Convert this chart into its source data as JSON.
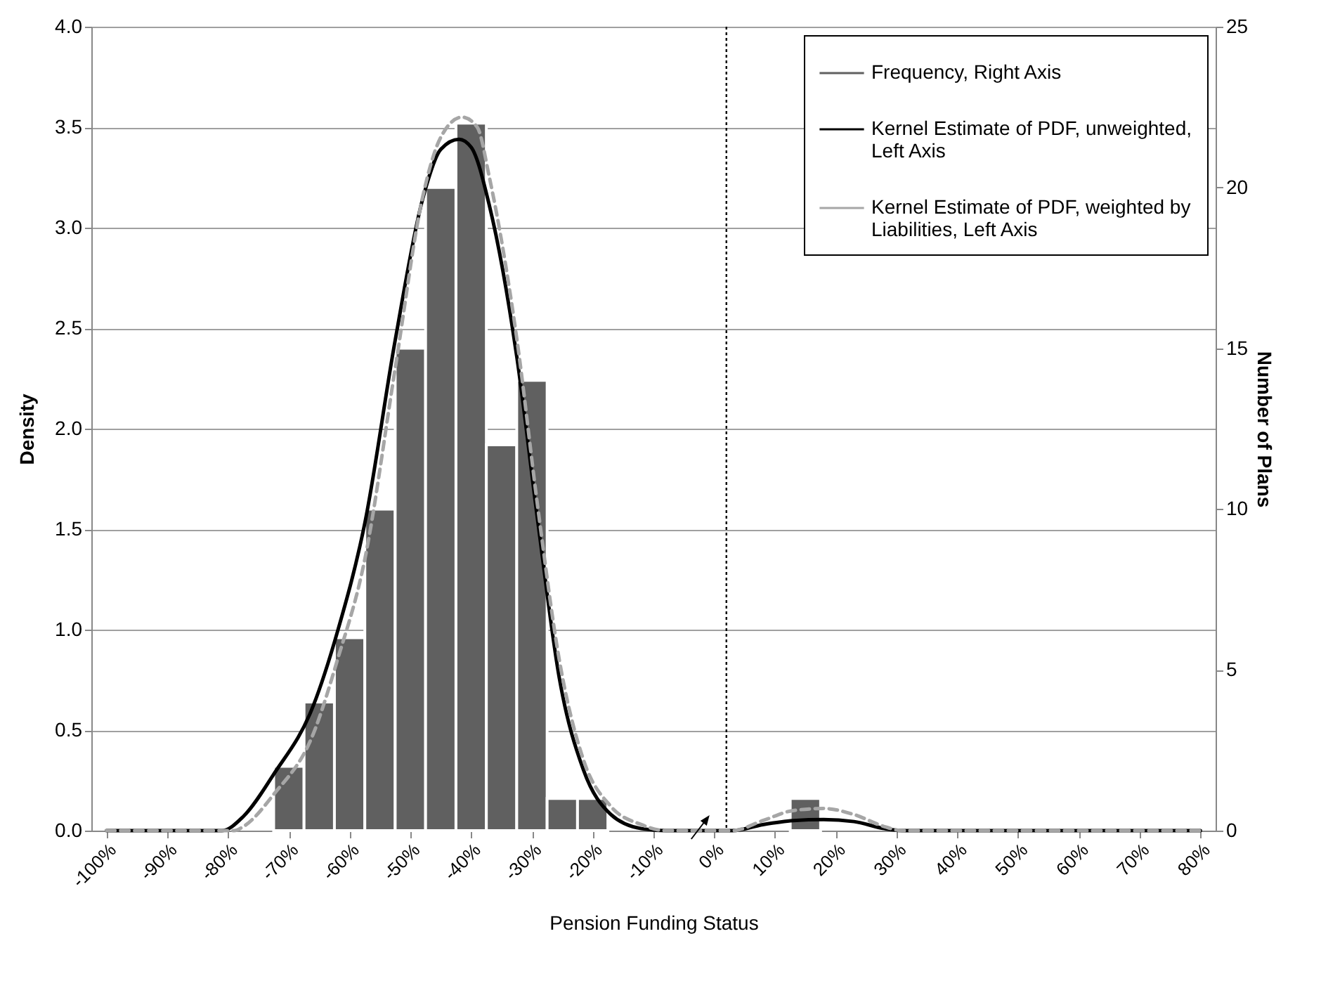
{
  "chart_data": {
    "type": "bar",
    "xlabel": "Pension Funding Status",
    "ylabel": "Density",
    "y2label": "Number of Plans",
    "series": [
      {
        "name": "Frequency, Right Axis",
        "color": "#606060",
        "axis": "y2",
        "x": [
          -70,
          -65,
          -60,
          -55,
          -50,
          -45,
          -40,
          -35,
          -30,
          -25,
          -20,
          15
        ],
        "values": [
          2,
          4,
          6,
          10,
          15,
          20,
          22,
          12,
          14,
          1,
          1,
          1
        ]
      },
      {
        "type": "line",
        "name": "Kernel Estimate of PDF, unweighted, Left Axis",
        "color": "#000000",
        "line_style": "solid",
        "x": [
          -100,
          -81,
          -77.5,
          -72.5,
          -66,
          -62,
          -57.5,
          -52.5,
          -48,
          -45,
          -42,
          -40,
          -37,
          -32.5,
          -29,
          -25.5,
          -21.5,
          -17,
          -12,
          -8,
          3,
          8,
          13,
          18,
          23,
          28,
          31,
          80
        ],
        "values": [
          0,
          0,
          0.07,
          0.28,
          0.62,
          0.99,
          1.53,
          2.44,
          3.14,
          3.39,
          3.44,
          3.4,
          3.11,
          2.36,
          1.53,
          0.76,
          0.3,
          0.08,
          0.01,
          0,
          0,
          0.03,
          0.05,
          0.055,
          0.045,
          0.01,
          0,
          0
        ]
      },
      {
        "type": "line",
        "name": "Kernel Estimate of PDF, weighted by Liabilities, Left Axis",
        "color": "#a6a6a6",
        "line_style": "dashed",
        "x": [
          -100,
          -79,
          -77.5,
          -72.5,
          -66,
          -62,
          -57.5,
          -52.5,
          -48,
          -45,
          -41.5,
          -39,
          -37,
          -32.5,
          -29,
          -25.5,
          -21.5,
          -17,
          -12,
          -8,
          3,
          8,
          13,
          18,
          23,
          28,
          31,
          80
        ],
        "values": [
          0,
          0,
          0.02,
          0.18,
          0.48,
          0.85,
          1.35,
          2.3,
          3.15,
          3.45,
          3.55,
          3.5,
          3.25,
          2.45,
          1.6,
          0.85,
          0.35,
          0.12,
          0.03,
          0,
          0,
          0.05,
          0.1,
          0.11,
          0.08,
          0.02,
          0,
          0
        ]
      }
    ],
    "xlim": [
      -102.5,
      82.5
    ],
    "xticks": [
      {
        "value": -100,
        "label": "-100%"
      },
      {
        "value": -90,
        "label": "-90%"
      },
      {
        "value": -80,
        "label": "-80%"
      },
      {
        "value": -70,
        "label": "-70%"
      },
      {
        "value": -60,
        "label": "-60%"
      },
      {
        "value": -50,
        "label": "-50%"
      },
      {
        "value": -40,
        "label": "-40%"
      },
      {
        "value": -30,
        "label": "-30%"
      },
      {
        "value": -20,
        "label": "-20%"
      },
      {
        "value": -10,
        "label": "-10%"
      },
      {
        "value": 0,
        "label": "0%"
      },
      {
        "value": 10,
        "label": "10%"
      },
      {
        "value": 20,
        "label": "20%"
      },
      {
        "value": 30,
        "label": "30%"
      },
      {
        "value": 40,
        "label": "40%"
      },
      {
        "value": 50,
        "label": "50%"
      },
      {
        "value": 60,
        "label": "60%"
      },
      {
        "value": 70,
        "label": "70%"
      },
      {
        "value": 80,
        "label": "80%"
      }
    ],
    "ylim": [
      0,
      4
    ],
    "yticks": [
      {
        "value": 0,
        "label": "0.0"
      },
      {
        "value": 0.5,
        "label": "0.5"
      },
      {
        "value": 1,
        "label": "1.0"
      },
      {
        "value": 1.5,
        "label": "1.5"
      },
      {
        "value": 2,
        "label": "2.0"
      },
      {
        "value": 2.5,
        "label": "2.5"
      },
      {
        "value": 3,
        "label": "3.0"
      },
      {
        "value": 3.5,
        "label": "3.5"
      },
      {
        "value": 4,
        "label": "4.0"
      }
    ],
    "y2lim": [
      0,
      25
    ],
    "y2ticks": [
      0,
      5,
      10,
      15,
      20,
      25
    ],
    "grid": "y",
    "legend": "top right",
    "ref_lines": [
      {
        "axis": "x",
        "value": 2,
        "color": "#000000",
        "line_style": "dotted"
      }
    ]
  }
}
